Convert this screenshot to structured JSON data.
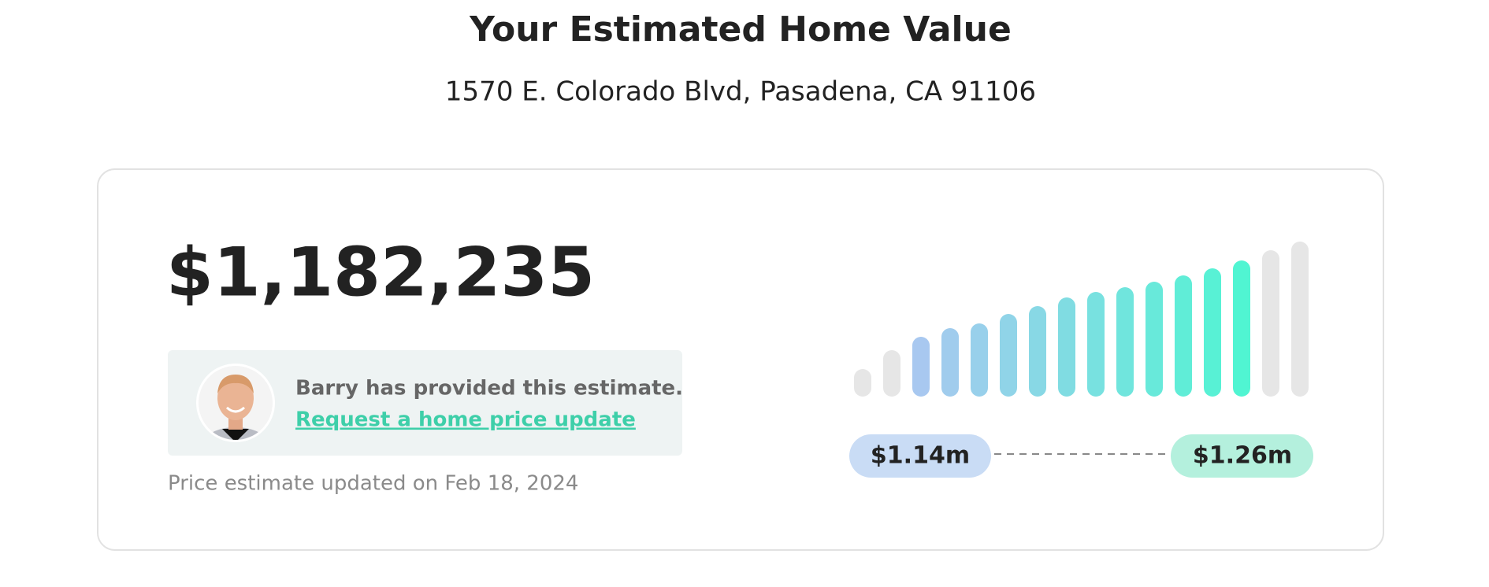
{
  "header": {
    "title": "Your Estimated Home Value",
    "address": "1570 E. Colorado Blvd, Pasadena, CA 91106"
  },
  "estimate": {
    "price": "$1,182,235",
    "agent_note": "Barry has provided this estimate.",
    "link": "Request a home price update",
    "updated": "Price estimate updated on Feb 18, 2024"
  },
  "range": {
    "low": "$1.14m",
    "high": "$1.26m"
  }
}
